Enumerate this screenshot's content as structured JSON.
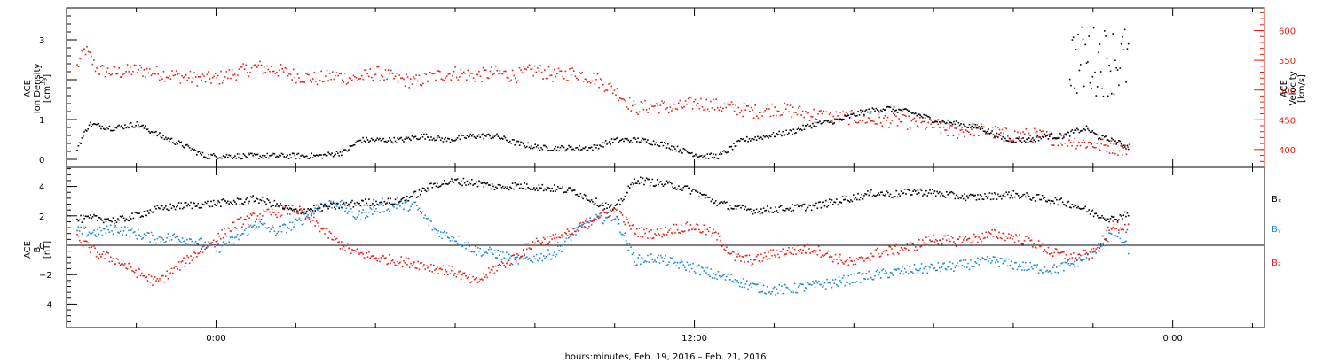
{
  "chart_data": [
    {
      "type": "scatter",
      "panel": "top",
      "ylabel_left": [
        "ACE",
        "Ion Density",
        "[cm⁻³]"
      ],
      "ylabel_right": [
        "ACE",
        "Velocity",
        "[km/s]"
      ],
      "left_axis": {
        "ylim": [
          -0.2,
          3.8
        ],
        "ticks": [
          0,
          1,
          2,
          3
        ],
        "tick_labels": [
          "0",
          "1",
          "2",
          "3"
        ],
        "color": "#000000"
      },
      "right_axis": {
        "ylim": [
          370,
          638
        ],
        "ticks": [
          400,
          450,
          500,
          550,
          600
        ],
        "tick_labels": [
          "400",
          "450",
          "500",
          "550",
          "600"
        ],
        "color": "#e0201b"
      },
      "series": [
        {
          "name": "Ion Density",
          "color": "#000000",
          "axis": "left",
          "x": [
            -3.5,
            -3.2,
            -2.6,
            -2.0,
            -1.4,
            -0.9,
            -0.3,
            0.3,
            1.0,
            1.8,
            2.6,
            3.2,
            3.6,
            4.0,
            4.6,
            5.2,
            5.8,
            6.4,
            7.0,
            7.6,
            8.2,
            8.8,
            9.4,
            10.0,
            10.6,
            11.2,
            11.8,
            12.2,
            12.6,
            13.2,
            13.8,
            14.4,
            15.0,
            15.6,
            16.2,
            16.8,
            17.4,
            18.0,
            18.6,
            19.2,
            19.8,
            20.4,
            20.8,
            21.2,
            21.5,
            21.8,
            22.1,
            22.4,
            22.7,
            22.9
          ],
          "y": [
            0.3,
            0.9,
            0.8,
            0.9,
            0.6,
            0.4,
            0.1,
            0.1,
            0.1,
            0.1,
            0.1,
            0.2,
            0.5,
            0.5,
            0.5,
            0.6,
            0.5,
            0.6,
            0.6,
            0.4,
            0.3,
            0.3,
            0.3,
            0.5,
            0.5,
            0.4,
            0.2,
            0.1,
            0.1,
            0.5,
            0.6,
            0.7,
            0.9,
            1.0,
            1.2,
            1.3,
            1.2,
            1.0,
            0.9,
            0.8,
            0.5,
            0.5,
            0.6,
            0.6,
            0.7,
            0.8,
            0.6,
            0.5,
            0.4,
            0.3
          ]
        },
        {
          "name": "Velocity",
          "color": "#e0201b",
          "axis": "right",
          "x": [
            -3.5,
            -3.3,
            -3.0,
            -2.5,
            -2.0,
            -1.5,
            -1.0,
            -0.5,
            0.0,
            0.5,
            1.0,
            1.5,
            2.0,
            2.5,
            3.0,
            3.5,
            4.0,
            4.5,
            5.0,
            5.5,
            6.0,
            6.5,
            7.0,
            7.5,
            8.0,
            8.5,
            9.0,
            9.5,
            10.0,
            10.5,
            11.0,
            11.5,
            12.0,
            12.5,
            13.0,
            13.5,
            14.0,
            14.5,
            15.0,
            15.5,
            16.0,
            16.5,
            17.0,
            17.5,
            18.0,
            18.5,
            19.0,
            19.5,
            20.0,
            20.5,
            21.0,
            21.5,
            22.0,
            22.5,
            22.9
          ],
          "y": [
            540,
            570,
            535,
            530,
            535,
            530,
            525,
            520,
            520,
            530,
            540,
            535,
            525,
            520,
            525,
            520,
            530,
            520,
            515,
            525,
            530,
            525,
            530,
            525,
            535,
            525,
            530,
            520,
            500,
            470,
            475,
            470,
            480,
            475,
            470,
            465,
            470,
            465,
            460,
            455,
            455,
            450,
            450,
            445,
            440,
            430,
            435,
            430,
            425,
            425,
            420,
            415,
            410,
            405,
            400
          ]
        }
      ]
    },
    {
      "type": "scatter",
      "panel": "bottom",
      "ylabel": [
        "ACE",
        "B",
        "[nT]"
      ],
      "ylim": [
        -5.6,
        5.3
      ],
      "ticks": [
        -4,
        -2,
        0,
        2,
        4
      ],
      "tick_labels": [
        "−4",
        "−2",
        "0",
        "2",
        "4"
      ],
      "zero_line": true,
      "legend": [
        "Bₓ",
        "Bᵧ",
        "B₂"
      ],
      "series": [
        {
          "name": "Bx",
          "color": "#000000",
          "x": [
            -3.5,
            -3.0,
            -2.5,
            -2.0,
            -1.5,
            -1.0,
            -0.5,
            0.0,
            0.5,
            1.0,
            1.5,
            2.0,
            2.5,
            3.0,
            3.5,
            4.0,
            4.5,
            5.0,
            5.5,
            6.0,
            6.5,
            7.0,
            7.5,
            8.0,
            8.5,
            9.0,
            9.5,
            10.0,
            10.5,
            11.0,
            11.5,
            12.0,
            12.5,
            13.0,
            13.5,
            14.0,
            14.5,
            15.0,
            15.5,
            16.0,
            16.5,
            17.0,
            17.5,
            18.0,
            18.5,
            19.0,
            19.5,
            20.0,
            20.5,
            21.0,
            21.5,
            22.0,
            22.5,
            22.9
          ],
          "y": [
            1.8,
            1.9,
            1.7,
            2.1,
            2.5,
            2.7,
            2.8,
            2.9,
            3.0,
            3.2,
            2.8,
            2.3,
            2.6,
            2.7,
            2.9,
            3.0,
            3.0,
            3.5,
            4.2,
            4.4,
            4.3,
            4.0,
            4.1,
            4.0,
            3.9,
            3.7,
            3.0,
            2.5,
            4.5,
            4.3,
            4.1,
            3.7,
            3.0,
            2.6,
            2.4,
            2.5,
            2.6,
            2.7,
            3.0,
            3.3,
            3.6,
            3.5,
            3.7,
            3.6,
            3.4,
            3.3,
            3.4,
            3.5,
            3.3,
            3.1,
            2.8,
            2.2,
            1.8,
            2.3
          ]
        },
        {
          "name": "By",
          "color": "#1f87d6",
          "x": [
            -3.5,
            -3.0,
            -2.5,
            -2.0,
            -1.5,
            -1.0,
            -0.5,
            0.0,
            0.5,
            1.0,
            1.5,
            2.0,
            2.5,
            3.0,
            3.5,
            4.0,
            4.5,
            5.0,
            5.5,
            6.0,
            6.5,
            7.0,
            7.5,
            8.0,
            8.5,
            9.0,
            9.5,
            10.0,
            10.5,
            11.0,
            11.5,
            12.0,
            12.5,
            13.0,
            13.5,
            14.0,
            14.5,
            15.0,
            15.5,
            16.0,
            16.5,
            17.0,
            17.5,
            18.0,
            18.5,
            19.0,
            19.5,
            20.0,
            20.5,
            21.0,
            21.5,
            22.0,
            22.5,
            22.9
          ],
          "y": [
            1.0,
            0.9,
            1.2,
            0.8,
            0.5,
            0.6,
            0.3,
            -0.2,
            0.5,
            1.5,
            1.0,
            1.5,
            2.5,
            3.0,
            2.0,
            2.5,
            2.8,
            2.7,
            1.0,
            0.5,
            -0.3,
            -0.5,
            -1.0,
            -0.8,
            -0.5,
            1.0,
            1.8,
            2.0,
            -1.0,
            -0.8,
            -1.2,
            -1.5,
            -2.0,
            -2.3,
            -2.8,
            -3.0,
            -2.9,
            -2.7,
            -2.5,
            -2.2,
            -2.0,
            -1.8,
            -1.6,
            -1.5,
            -1.4,
            -1.2,
            -1.0,
            -1.3,
            -1.5,
            -1.6,
            -1.2,
            -0.5,
            1.0,
            -0.3
          ]
        },
        {
          "name": "Bz",
          "color": "#e0201b",
          "x": [
            -3.5,
            -3.0,
            -2.5,
            -2.0,
            -1.5,
            -1.0,
            -0.5,
            0.0,
            0.5,
            1.0,
            1.5,
            2.0,
            2.5,
            3.0,
            3.5,
            4.0,
            4.5,
            5.0,
            5.5,
            6.0,
            6.5,
            7.0,
            7.5,
            8.0,
            8.5,
            9.0,
            9.5,
            10.0,
            10.5,
            11.0,
            11.5,
            12.0,
            12.5,
            13.0,
            13.5,
            14.0,
            14.5,
            15.0,
            15.5,
            16.0,
            16.5,
            17.0,
            17.5,
            18.0,
            18.5,
            19.0,
            19.5,
            20.0,
            20.5,
            21.0,
            21.5,
            22.0,
            22.5,
            22.9
          ],
          "y": [
            0.5,
            -0.5,
            -1.0,
            -1.8,
            -2.5,
            -1.5,
            -0.5,
            0.5,
            1.5,
            2.0,
            2.3,
            2.5,
            1.5,
            0.3,
            -0.5,
            -0.8,
            -1.0,
            -1.2,
            -1.5,
            -1.8,
            -2.5,
            -1.5,
            -0.8,
            0.3,
            0.5,
            1.0,
            2.0,
            2.4,
            1.0,
            0.8,
            1.2,
            1.3,
            0.8,
            -0.8,
            -1.0,
            -0.5,
            -0.3,
            -0.2,
            -0.8,
            -1.2,
            -0.5,
            -0.3,
            0.0,
            0.5,
            0.3,
            0.5,
            0.8,
            0.6,
            0.2,
            -0.5,
            -0.8,
            -0.5,
            1.5,
            1.2
          ]
        }
      ]
    }
  ],
  "x_axis": {
    "xlim": [
      -3.75,
      26.3
    ],
    "major_ticks": [
      0,
      12,
      24
    ],
    "major_labels": [
      "0:00",
      "12:00",
      "0:00"
    ],
    "minor_step": 2,
    "label": "hours:minutes, Feb. 19, 2016 – Feb. 21, 2016"
  }
}
